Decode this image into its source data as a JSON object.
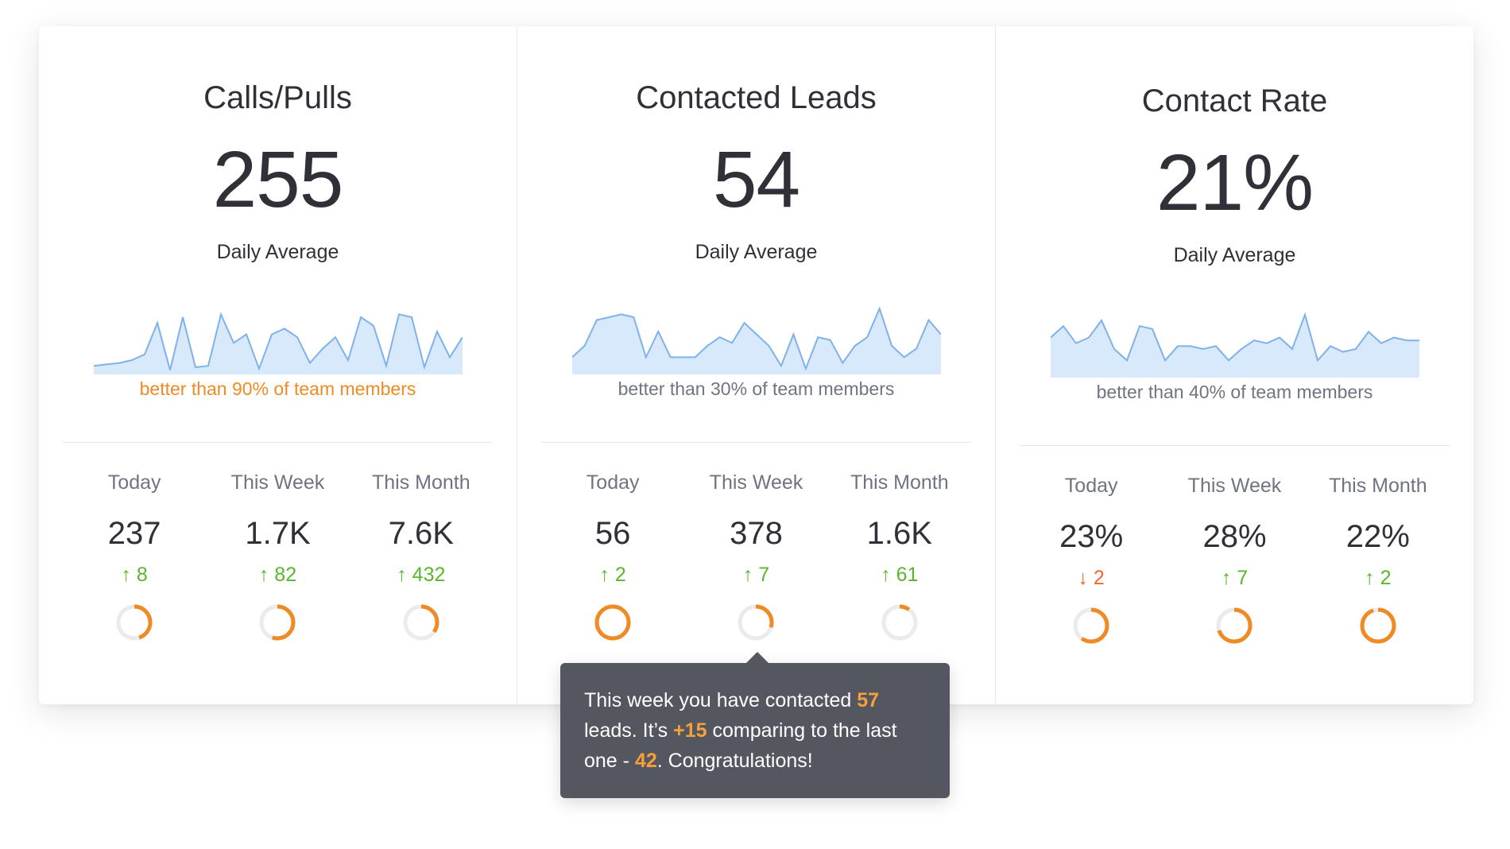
{
  "colors": {
    "accent_orange": "#f08a24",
    "up_green": "#5ab62e",
    "down_orange": "#ef6a2c",
    "sparkline_fill": "#d8e9fb",
    "sparkline_stroke": "#7fb2ea",
    "donut_track": "#ebebeb",
    "tooltip_bg": "#545660"
  },
  "panels": [
    {
      "title": "Calls/Pulls",
      "value": "255",
      "avg_label": "Daily Average",
      "rank_text": "better than 90% of team members",
      "rank_highlight": true,
      "sparkline": [
        6,
        7,
        8,
        10,
        14,
        36,
        3,
        40,
        5,
        6,
        42,
        22,
        28,
        4,
        28,
        32,
        26,
        8,
        18,
        26,
        10,
        40,
        34,
        6,
        42,
        40,
        5,
        30,
        12,
        26
      ],
      "stats": [
        {
          "label": "Today",
          "value": "237",
          "delta_dir": "up",
          "delta_text": "↑ 8",
          "progress": 0.45
        },
        {
          "label": "This Week",
          "value": "1.7K",
          "delta_dir": "up",
          "delta_text": "↑ 82",
          "progress": 0.55
        },
        {
          "label": "This Month",
          "value": "7.6K",
          "delta_dir": "up",
          "delta_text": "↑ 432",
          "progress": 0.35
        }
      ]
    },
    {
      "title": "Contacted Leads",
      "value": "54",
      "avg_label": "Daily Average",
      "rank_text": "better than 30% of team members",
      "rank_highlight": false,
      "sparkline": [
        12,
        20,
        38,
        40,
        42,
        40,
        12,
        30,
        12,
        12,
        12,
        20,
        26,
        22,
        36,
        28,
        20,
        6,
        28,
        4,
        26,
        24,
        8,
        20,
        26,
        46,
        20,
        12,
        18,
        38,
        28
      ],
      "stats": [
        {
          "label": "Today",
          "value": "56",
          "delta_dir": "up",
          "delta_text": "↑ 2",
          "progress": 1.0
        },
        {
          "label": "This Week",
          "value": "378",
          "delta_dir": "up",
          "delta_text": "↑ 7",
          "progress": 0.3
        },
        {
          "label": "This Month",
          "value": "1.6K",
          "delta_dir": "up",
          "delta_text": "↑ 61",
          "progress": 0.1
        }
      ]
    },
    {
      "title": "Contact Rate",
      "value": "21%",
      "avg_label": "Daily Average",
      "rank_text": "better than 40% of team members",
      "rank_highlight": false,
      "sparkline": [
        28,
        36,
        24,
        28,
        40,
        20,
        12,
        36,
        34,
        12,
        22,
        22,
        20,
        22,
        12,
        20,
        26,
        24,
        28,
        20,
        44,
        12,
        22,
        18,
        20,
        32,
        24,
        28,
        26,
        26
      ],
      "stats": [
        {
          "label": "Today",
          "value": "23%",
          "delta_dir": "down",
          "delta_text": "↓ 2",
          "progress": 0.6
        },
        {
          "label": "This Week",
          "value": "28%",
          "delta_dir": "up",
          "delta_text": "↑ 7",
          "progress": 0.7
        },
        {
          "label": "This Month",
          "value": "22%",
          "delta_dir": "up",
          "delta_text": "↑ 2",
          "progress": 0.95
        }
      ]
    }
  ],
  "tooltip": {
    "part1": "This week you have contacted ",
    "num1": "57",
    "part2": " leads. It’s ",
    "num2": "+15",
    "part3": " comparing to the last one - ",
    "num3": "42",
    "part4": ". Congratulations!"
  }
}
